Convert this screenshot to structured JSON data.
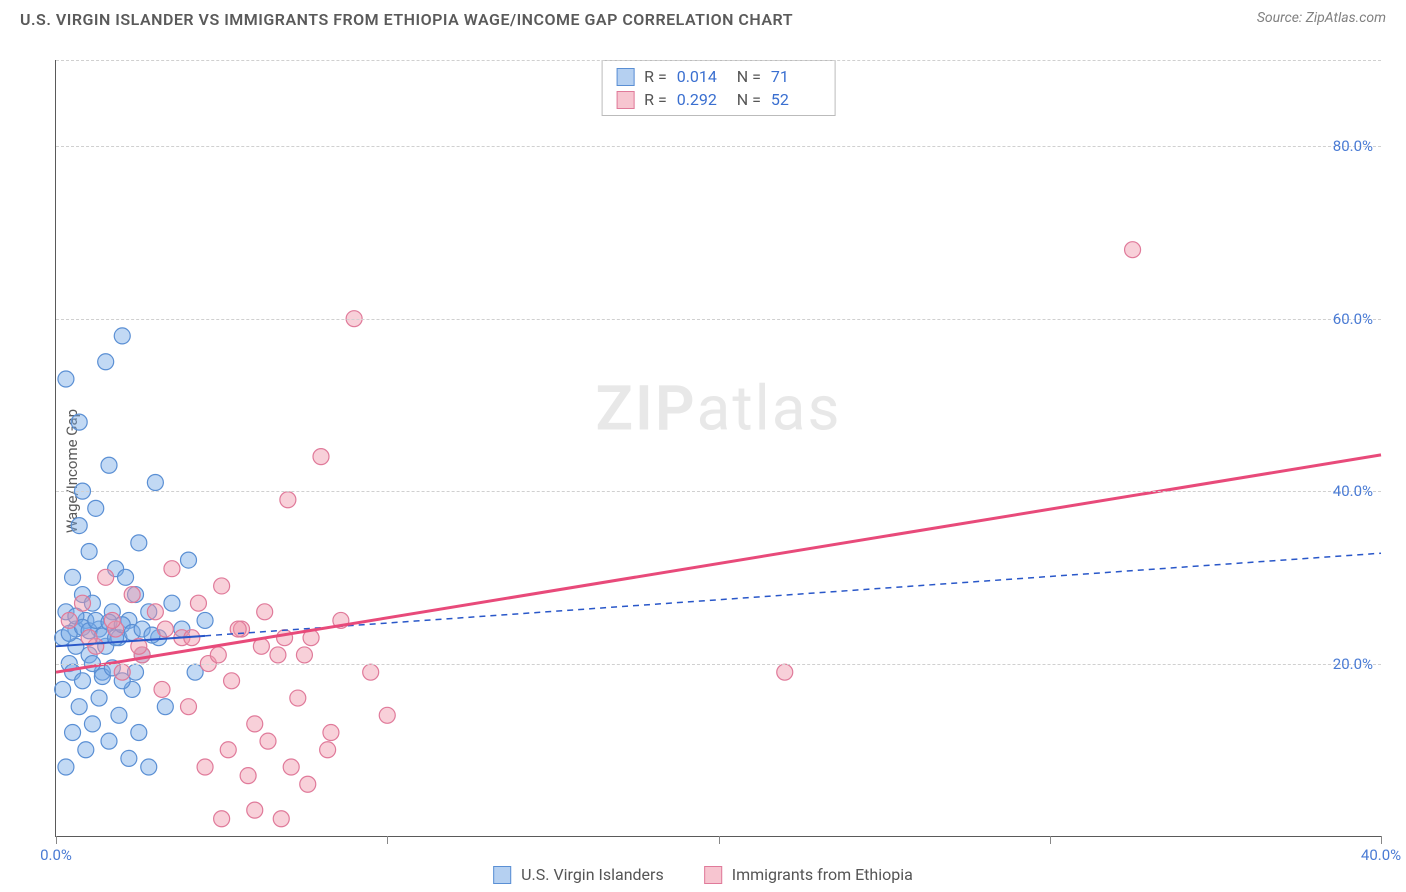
{
  "title": "U.S. VIRGIN ISLANDER VS IMMIGRANTS FROM ETHIOPIA WAGE/INCOME GAP CORRELATION CHART",
  "source": "Source: ZipAtlas.com",
  "watermark_a": "ZIP",
  "watermark_b": "atlas",
  "y_axis_label": "Wage/Income Gap",
  "chart": {
    "type": "scatter",
    "background_color": "#ffffff",
    "grid_color": "#d0d0d0",
    "axis_color": "#5a5a5a",
    "tick_label_color": "#4a7bd4",
    "xlim": [
      0,
      40
    ],
    "ylim": [
      0,
      90
    ],
    "x_ticks": [
      0,
      10,
      20,
      30,
      40
    ],
    "x_tick_labels": [
      "0.0%",
      "",
      "",
      "",
      "40.0%"
    ],
    "y_ticks": [
      20,
      40,
      60,
      80
    ],
    "y_tick_labels": [
      "20.0%",
      "40.0%",
      "60.0%",
      "80.0%"
    ],
    "label_fontsize": 15,
    "title_fontsize": 16,
    "marker_radius": 8,
    "marker_opacity": 0.55,
    "series": [
      {
        "name": "U.S. Virgin Islanders",
        "color_fill": "rgba(120,170,230,0.45)",
        "color_stroke": "#5a8fd4",
        "R": "0.014",
        "N": "71",
        "trend": {
          "slope": 0.27,
          "intercept": 22,
          "solid_until_x": 4.5,
          "color": "#2957c9",
          "width": 2
        },
        "points": [
          [
            0.2,
            23
          ],
          [
            0.3,
            26
          ],
          [
            0.4,
            20
          ],
          [
            0.5,
            30
          ],
          [
            0.6,
            24
          ],
          [
            0.6,
            22
          ],
          [
            0.7,
            36
          ],
          [
            0.8,
            40
          ],
          [
            0.8,
            28
          ],
          [
            0.9,
            25
          ],
          [
            1.0,
            33
          ],
          [
            1.0,
            21
          ],
          [
            1.1,
            27
          ],
          [
            1.2,
            38
          ],
          [
            1.3,
            24
          ],
          [
            1.4,
            19
          ],
          [
            1.5,
            55
          ],
          [
            1.5,
            22
          ],
          [
            1.6,
            43
          ],
          [
            1.7,
            26
          ],
          [
            1.8,
            31
          ],
          [
            1.9,
            23
          ],
          [
            2.0,
            58
          ],
          [
            2.1,
            30
          ],
          [
            2.2,
            25
          ],
          [
            2.3,
            17
          ],
          [
            2.4,
            28
          ],
          [
            2.5,
            34
          ],
          [
            2.6,
            21
          ],
          [
            2.8,
            26
          ],
          [
            3.0,
            41
          ],
          [
            3.1,
            23
          ],
          [
            3.3,
            15
          ],
          [
            3.5,
            27
          ],
          [
            3.8,
            24
          ],
          [
            4.0,
            32
          ],
          [
            4.2,
            19
          ],
          [
            4.5,
            25
          ],
          [
            0.3,
            8
          ],
          [
            0.5,
            12
          ],
          [
            0.7,
            15
          ],
          [
            0.9,
            10
          ],
          [
            1.1,
            13
          ],
          [
            1.3,
            16
          ],
          [
            1.6,
            11
          ],
          [
            1.9,
            14
          ],
          [
            2.2,
            9
          ],
          [
            2.5,
            12
          ],
          [
            0.4,
            23.5
          ],
          [
            0.6,
            25.5
          ],
          [
            0.8,
            24.2
          ],
          [
            1.0,
            23.8
          ],
          [
            1.2,
            25.0
          ],
          [
            1.4,
            23.2
          ],
          [
            1.6,
            24.8
          ],
          [
            1.8,
            23.0
          ],
          [
            2.0,
            24.5
          ],
          [
            2.3,
            23.6
          ],
          [
            2.6,
            24.0
          ],
          [
            2.9,
            23.3
          ],
          [
            0.3,
            53
          ],
          [
            0.7,
            48
          ],
          [
            0.2,
            17
          ],
          [
            0.5,
            19
          ],
          [
            0.8,
            18
          ],
          [
            1.1,
            20
          ],
          [
            1.4,
            18.5
          ],
          [
            1.7,
            19.5
          ],
          [
            2.0,
            18
          ],
          [
            2.4,
            19
          ],
          [
            2.8,
            8
          ]
        ]
      },
      {
        "name": "Immigrants from Ethiopia",
        "color_fill": "rgba(240,150,170,0.45)",
        "color_stroke": "#e07a9a",
        "R": "0.292",
        "N": "52",
        "trend": {
          "slope": 0.63,
          "intercept": 19,
          "solid_until_x": 40,
          "color": "#e84a7a",
          "width": 3
        },
        "points": [
          [
            0.4,
            25
          ],
          [
            0.8,
            27
          ],
          [
            1.2,
            22
          ],
          [
            1.5,
            30
          ],
          [
            1.8,
            24
          ],
          [
            2.0,
            19
          ],
          [
            2.3,
            28
          ],
          [
            2.6,
            21
          ],
          [
            3.0,
            26
          ],
          [
            3.2,
            17
          ],
          [
            3.5,
            31
          ],
          [
            3.8,
            23
          ],
          [
            4.0,
            15
          ],
          [
            4.3,
            27
          ],
          [
            4.6,
            20
          ],
          [
            5.0,
            29
          ],
          [
            5.3,
            18
          ],
          [
            5.6,
            24
          ],
          [
            6.0,
            13
          ],
          [
            6.3,
            26
          ],
          [
            6.7,
            21
          ],
          [
            7.0,
            39
          ],
          [
            7.3,
            16
          ],
          [
            7.7,
            23
          ],
          [
            8.0,
            44
          ],
          [
            8.3,
            12
          ],
          [
            8.6,
            25
          ],
          [
            9.0,
            60
          ],
          [
            9.5,
            19
          ],
          [
            10.0,
            14
          ],
          [
            4.5,
            8
          ],
          [
            5.2,
            10
          ],
          [
            5.8,
            7
          ],
          [
            6.4,
            11
          ],
          [
            7.1,
            8
          ],
          [
            7.6,
            6
          ],
          [
            8.2,
            10
          ],
          [
            1.0,
            23
          ],
          [
            1.7,
            25
          ],
          [
            2.5,
            22
          ],
          [
            3.3,
            24
          ],
          [
            4.1,
            23
          ],
          [
            4.9,
            21
          ],
          [
            5.5,
            24
          ],
          [
            6.2,
            22
          ],
          [
            6.9,
            23
          ],
          [
            7.5,
            21
          ],
          [
            5.0,
            2
          ],
          [
            6.0,
            3
          ],
          [
            6.8,
            2
          ],
          [
            22.0,
            19
          ],
          [
            32.5,
            68
          ]
        ]
      }
    ]
  },
  "stats_legend": {
    "rows": [
      {
        "swatch": "blue",
        "r_label": "R =",
        "r_val": "0.014",
        "n_label": "N =",
        "n_val": "71"
      },
      {
        "swatch": "pink",
        "r_label": "R =",
        "r_val": "0.292",
        "n_label": "N =",
        "n_val": "52"
      }
    ]
  },
  "bottom_legend": {
    "items": [
      {
        "swatch": "blue",
        "label": "U.S. Virgin Islanders"
      },
      {
        "swatch": "pink",
        "label": "Immigrants from Ethiopia"
      }
    ]
  }
}
